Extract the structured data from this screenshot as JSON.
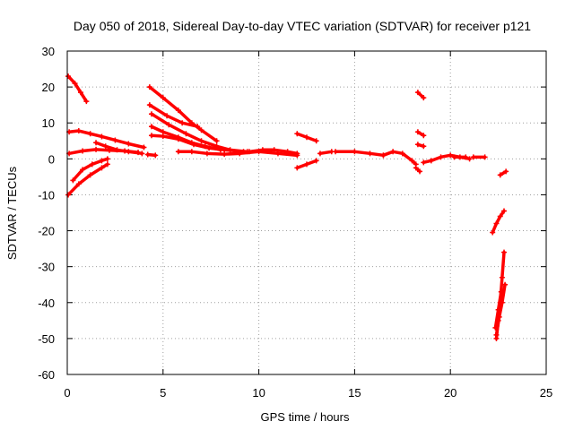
{
  "chart_data": {
    "type": "scatter",
    "title": "Day 050 of 2018, Sidereal Day-to-day VTEC variation (SDTVAR) for receiver p121",
    "xlabel": "GPS time / hours",
    "ylabel": "SDTVAR / TECUs",
    "xlim": [
      0,
      25
    ],
    "ylim": [
      -60,
      30
    ],
    "x_ticks": [
      "0",
      "5",
      "10",
      "15",
      "20",
      "25"
    ],
    "y_ticks": [
      "30",
      "20",
      "10",
      "0",
      "-10",
      "-20",
      "-30",
      "-40",
      "-50",
      "-60"
    ],
    "grid": true,
    "series_color": "#ff0000",
    "marker": "plus",
    "series": [
      {
        "x": [
          0.05,
          0.4,
          0.7,
          1.0
        ],
        "y": [
          23,
          21,
          18.5,
          16
        ]
      },
      {
        "x": [
          0.1,
          0.6,
          1.2,
          1.8,
          2.5,
          3.2,
          4.0
        ],
        "y": [
          7.5,
          7.8,
          7.0,
          6.2,
          5.2,
          4.2,
          3.2
        ]
      },
      {
        "x": [
          0.1,
          0.8,
          1.5,
          2.2,
          3.0,
          3.7
        ],
        "y": [
          1.5,
          2.2,
          2.6,
          2.4,
          2.2,
          1.8
        ]
      },
      {
        "x": [
          0.3,
          0.8,
          1.3,
          1.8,
          2.1
        ],
        "y": [
          -6,
          -3,
          -1.5,
          -0.5,
          0
        ]
      },
      {
        "x": [
          0.05,
          0.6,
          1.2,
          1.8,
          2.1
        ],
        "y": [
          -10,
          -7,
          -4.5,
          -2.5,
          -1.5
        ]
      },
      {
        "x": [
          1.5,
          2.0,
          2.6,
          3.2,
          3.9
        ],
        "y": [
          4.5,
          3.5,
          2.5,
          2.0,
          1.5
        ]
      },
      {
        "x": [
          4.3,
          5.0,
          5.8,
          6.5,
          7.0,
          7.8
        ],
        "y": [
          20,
          17,
          13.5,
          10,
          8,
          5
        ]
      },
      {
        "x": [
          4.3,
          5.2,
          6.0,
          6.8
        ],
        "y": [
          15,
          12,
          10,
          9
        ]
      },
      {
        "x": [
          4.4,
          5.3,
          6.2,
          7.0,
          7.8,
          8.5,
          9.4
        ],
        "y": [
          12.5,
          9.5,
          7.0,
          5.0,
          3.5,
          2.5,
          2.0
        ]
      },
      {
        "x": [
          4.4,
          5.0,
          5.8,
          6.5,
          7.2,
          8.0
        ],
        "y": [
          9,
          7.5,
          6,
          4.5,
          3.5,
          2.5
        ]
      },
      {
        "x": [
          4.4,
          5.0,
          5.8,
          6.6,
          7.4,
          8.2,
          9.2
        ],
        "y": [
          6.5,
          6.3,
          5.5,
          4.0,
          3.0,
          2.5,
          2.0
        ]
      },
      {
        "x": [
          4.2,
          4.6
        ],
        "y": [
          1.2,
          1.0
        ]
      },
      {
        "x": [
          5.8,
          6.5,
          7.3,
          8.2,
          9.0,
          10.0,
          11.0,
          12.0
        ],
        "y": [
          2.0,
          2.0,
          1.5,
          1.3,
          1.5,
          2.0,
          1.5,
          1.0
        ]
      },
      {
        "x": [
          9.5,
          10.2,
          10.8,
          11.5,
          12.0
        ],
        "y": [
          2.0,
          2.5,
          2.5,
          2.0,
          1.5
        ]
      },
      {
        "x": [
          12.0,
          12.5,
          13.0
        ],
        "y": [
          7.0,
          6.0,
          5.0
        ]
      },
      {
        "x": [
          12.0,
          12.5,
          13.0
        ],
        "y": [
          -2.5,
          -1.5,
          -0.5
        ]
      },
      {
        "x": [
          13.2,
          13.8
        ],
        "y": [
          1.5,
          2.0
        ]
      },
      {
        "x": [
          14.0,
          15.0,
          15.8,
          16.5
        ],
        "y": [
          2.0,
          2.0,
          1.5,
          1.0
        ]
      },
      {
        "x": [
          16.5,
          17.0,
          17.5,
          18.0,
          18.2
        ],
        "y": [
          1.0,
          2.0,
          1.5,
          -0.5,
          -1.5
        ]
      },
      {
        "x": [
          18.2,
          18.4
        ],
        "y": [
          -2.5,
          -3.5
        ]
      },
      {
        "x": [
          18.3,
          18.6
        ],
        "y": [
          18.5,
          17.0
        ]
      },
      {
        "x": [
          18.3,
          18.6
        ],
        "y": [
          7.5,
          6.5
        ]
      },
      {
        "x": [
          18.3,
          18.6
        ],
        "y": [
          4.0,
          3.5
        ]
      },
      {
        "x": [
          18.6,
          19.0,
          19.5,
          20.0,
          20.5,
          21.0
        ],
        "y": [
          -1.0,
          -0.5,
          0.5,
          1.0,
          0.5,
          0.0
        ]
      },
      {
        "x": [
          20.2,
          20.8
        ],
        "y": [
          0.5,
          0.5
        ]
      },
      {
        "x": [
          21.2,
          21.8
        ],
        "y": [
          0.5,
          0.5
        ]
      },
      {
        "x": [
          22.2,
          22.4,
          22.6,
          22.8
        ],
        "y": [
          -20.5,
          -18.0,
          -16.0,
          -14.5
        ]
      },
      {
        "x": [
          22.6,
          22.9
        ],
        "y": [
          -4.5,
          -3.5
        ]
      },
      {
        "x": [
          22.4,
          22.5,
          22.6,
          22.7,
          22.8
        ],
        "y": [
          -50,
          -45,
          -40,
          -33,
          -26
        ]
      },
      {
        "x": [
          22.4,
          22.55,
          22.7,
          22.85
        ],
        "y": [
          -49,
          -44,
          -40,
          -35
        ]
      },
      {
        "x": [
          22.35,
          22.5,
          22.65
        ],
        "y": [
          -47,
          -42,
          -37
        ]
      }
    ]
  }
}
